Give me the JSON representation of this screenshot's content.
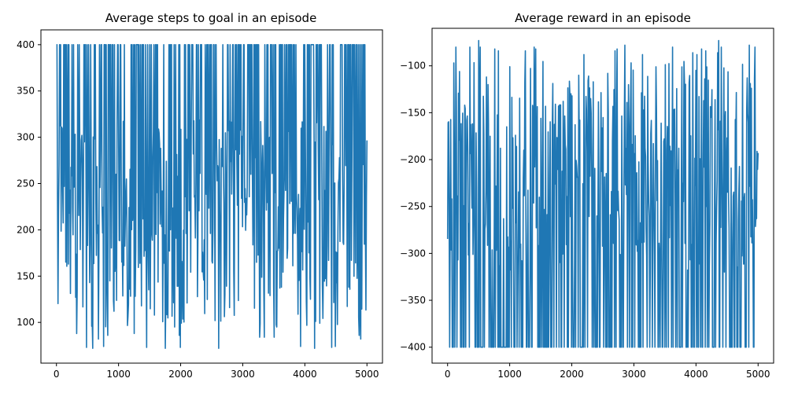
{
  "chart_data": [
    {
      "type": "line",
      "title": "Average steps to goal in an episode",
      "xlabel": "",
      "ylabel": "",
      "xlim": [
        -250,
        5250
      ],
      "ylim": [
        56,
        416
      ],
      "xticks": [
        0,
        1000,
        2000,
        3000,
        4000,
        5000
      ],
      "yticks": [
        100,
        150,
        200,
        250,
        300,
        350,
        400
      ],
      "grid": false,
      "color": "#1f77b4",
      "series": [
        {
          "x_start": 0,
          "x_end": 5000,
          "samples": 600,
          "cap_value": 400,
          "min_value": 72,
          "typical_range": [
            95,
            320
          ],
          "cap_probability": 0.34,
          "dip_values": [
            72,
            73,
            82,
            84,
            86,
            74,
            88,
            95
          ]
        }
      ]
    },
    {
      "type": "line",
      "title": "Average reward in an episode",
      "xlabel": "",
      "ylabel": "",
      "xlim": [
        -250,
        5250
      ],
      "ylim": [
        -417,
        -60
      ],
      "xticks": [
        0,
        1000,
        2000,
        3000,
        4000,
        5000
      ],
      "yticks": [
        -100,
        -150,
        -200,
        -250,
        -300,
        -350,
        -400
      ],
      "grid": false,
      "color": "#1f77b4",
      "series": [
        {
          "x_start": 0,
          "x_end": 5000,
          "samples": 600,
          "floor_value": -400,
          "max_value": -72,
          "typical_range": [
            -320,
            -95
          ],
          "floor_probability": 0.34,
          "peak_values": [
            -72,
            -73,
            -78,
            -80,
            -82,
            -84,
            -86,
            -88
          ]
        }
      ]
    }
  ]
}
